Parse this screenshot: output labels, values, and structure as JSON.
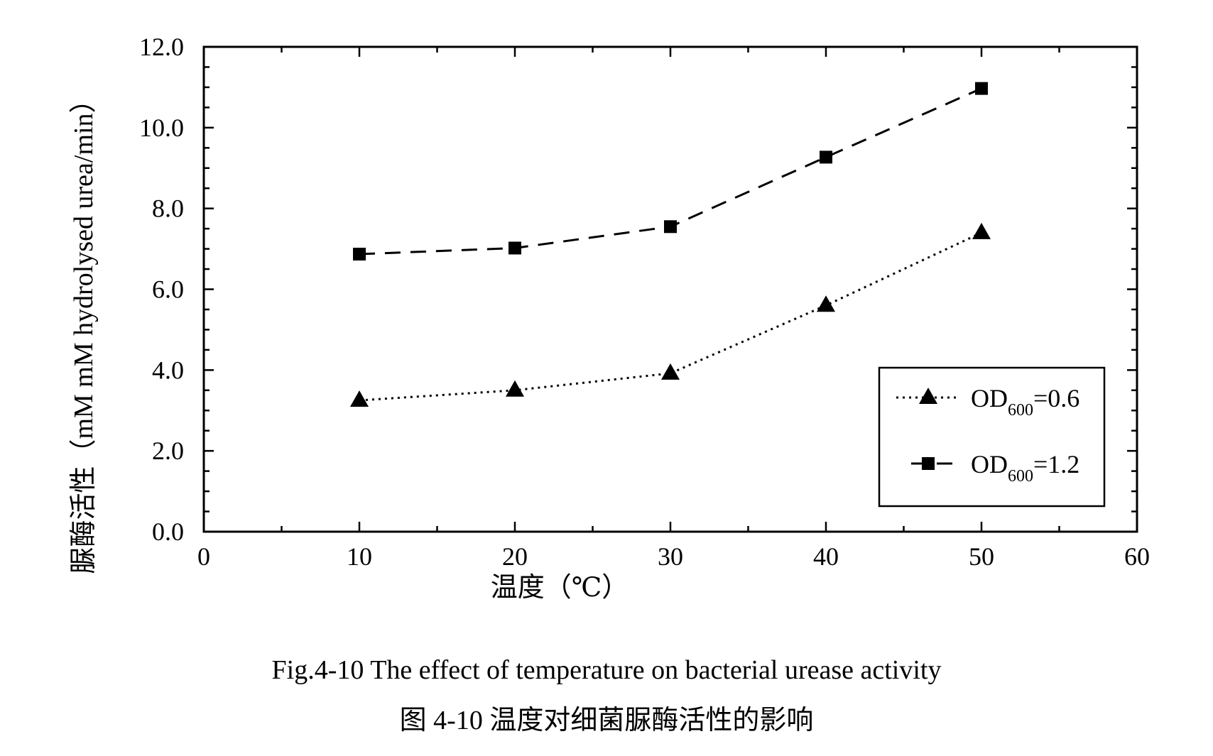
{
  "chart_data": {
    "type": "line",
    "x": [
      10,
      20,
      30,
      40,
      50
    ],
    "series": [
      {
        "name_main": "OD",
        "name_sub": "600",
        "name_value": "=0.6",
        "values": [
          3.25,
          3.5,
          3.92,
          5.6,
          7.4
        ],
        "marker": "triangle",
        "line_style": "dotted",
        "color": "#000000"
      },
      {
        "name_main": "OD",
        "name_sub": "600",
        "name_value": "=1.2",
        "values": [
          6.87,
          7.02,
          7.55,
          9.27,
          10.97
        ],
        "marker": "square",
        "line_style": "dashed",
        "color": "#000000"
      }
    ],
    "xlabel": "温度（℃）",
    "ylabel": "脲酶活性（mM mM hydrolysed urea/min）",
    "xlim": [
      0,
      60
    ],
    "ylim": [
      0,
      12
    ],
    "x_ticks": [
      "0",
      "10",
      "20",
      "30",
      "40",
      "50",
      "60"
    ],
    "y_ticks": [
      "0.0",
      "2.0",
      "4.0",
      "6.0",
      "8.0",
      "10.0",
      "12.0"
    ],
    "grid": false,
    "legend_position": "bottom-right"
  },
  "caption": {
    "english": "Fig.4-10 The effect of temperature on bacterial urease activity",
    "chinese": "图 4-10  温度对细菌脲酶活性的影响"
  }
}
